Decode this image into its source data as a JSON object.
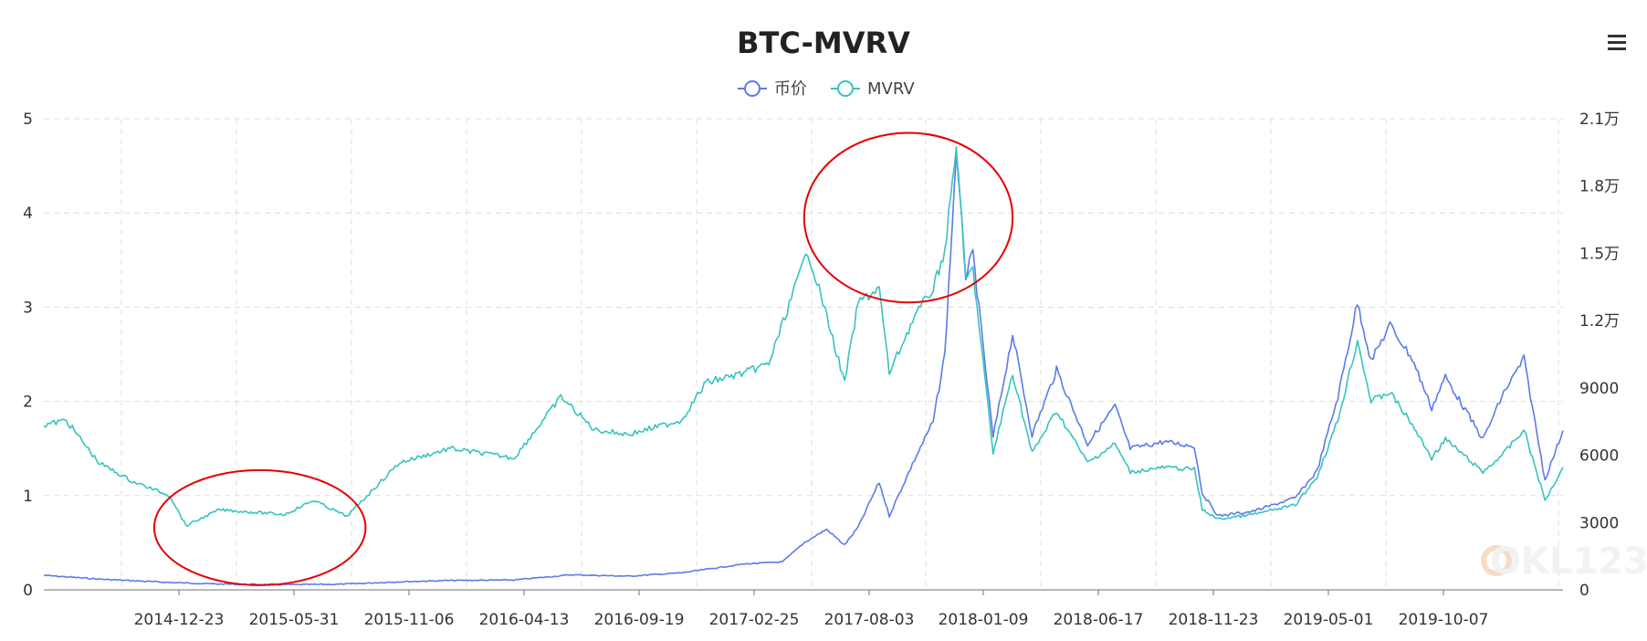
{
  "chart_data": {
    "type": "line",
    "title": "BTC-MVRV",
    "legend": {
      "position": "top-center",
      "entries": [
        "币价",
        "MVRV"
      ]
    },
    "x_tick_labels": [
      "2014-12-23",
      "2015-05-31",
      "2015-11-06",
      "2016-04-13",
      "2016-09-19",
      "2017-02-25",
      "2017-08-03",
      "2018-01-09",
      "2018-06-17",
      "2018-11-23",
      "2019-05-01",
      "2019-10-07"
    ],
    "y_left": {
      "min": 0,
      "max": 5,
      "ticks": [
        "0",
        "1",
        "2",
        "3",
        "4",
        "5"
      ]
    },
    "y_right": {
      "min": 0,
      "max": 21000,
      "ticks": [
        "0",
        "3000",
        "6000",
        "9000",
        "1.2万",
        "1.5万",
        "1.8万",
        "2.1万"
      ]
    },
    "grid": true,
    "series": [
      {
        "name": "币价",
        "color": "#5b7be9",
        "axis": "right",
        "points": [
          [
            "2014-07-01",
            650
          ],
          [
            "2014-09-15",
            480
          ],
          [
            "2014-12-23",
            330
          ],
          [
            "2015-03-01",
            260
          ],
          [
            "2015-05-31",
            230
          ],
          [
            "2015-08-15",
            250
          ],
          [
            "2015-11-06",
            360
          ],
          [
            "2016-01-15",
            420
          ],
          [
            "2016-04-13",
            440
          ],
          [
            "2016-07-01",
            670
          ],
          [
            "2016-09-19",
            610
          ],
          [
            "2016-12-01",
            760
          ],
          [
            "2017-02-25",
            1150
          ],
          [
            "2017-04-20",
            1250
          ],
          [
            "2017-05-20",
            2100
          ],
          [
            "2017-06-20",
            2700
          ],
          [
            "2017-07-15",
            2000
          ],
          [
            "2017-08-03",
            2800
          ],
          [
            "2017-09-01",
            4800
          ],
          [
            "2017-09-15",
            3300
          ],
          [
            "2017-10-20",
            5800
          ],
          [
            "2017-11-15",
            7500
          ],
          [
            "2017-12-01",
            10500
          ],
          [
            "2017-12-17",
            19500
          ],
          [
            "2017-12-30",
            14000
          ],
          [
            "2018-01-09",
            15000
          ],
          [
            "2018-02-06",
            6800
          ],
          [
            "2018-03-05",
            11400
          ],
          [
            "2018-04-01",
            6900
          ],
          [
            "2018-05-05",
            9800
          ],
          [
            "2018-06-17",
            6500
          ],
          [
            "2018-07-25",
            8200
          ],
          [
            "2018-08-15",
            6300
          ],
          [
            "2018-10-01",
            6600
          ],
          [
            "2018-11-12",
            6400
          ],
          [
            "2018-11-23",
            4300
          ],
          [
            "2018-12-15",
            3300
          ],
          [
            "2019-02-01",
            3500
          ],
          [
            "2019-04-01",
            4100
          ],
          [
            "2019-05-01",
            5300
          ],
          [
            "2019-05-30",
            8600
          ],
          [
            "2019-06-26",
            12800
          ],
          [
            "2019-07-15",
            10200
          ],
          [
            "2019-08-10",
            11800
          ],
          [
            "2019-09-10",
            10300
          ],
          [
            "2019-10-07",
            8100
          ],
          [
            "2019-10-26",
            9500
          ],
          [
            "2019-12-17",
            6700
          ],
          [
            "2020-01-15",
            8800
          ],
          [
            "2020-02-12",
            10300
          ],
          [
            "2020-03-12",
            4900
          ],
          [
            "2020-04-06",
            7100
          ]
        ]
      },
      {
        "name": "MVRV",
        "color": "#36c3bf",
        "axis": "left",
        "points": [
          [
            "2014-07-01",
            1.75
          ],
          [
            "2014-08-01",
            1.8
          ],
          [
            "2014-09-15",
            1.35
          ],
          [
            "2014-11-01",
            1.15
          ],
          [
            "2014-12-23",
            1.0
          ],
          [
            "2015-01-14",
            0.68
          ],
          [
            "2015-03-01",
            0.85
          ],
          [
            "2015-05-31",
            0.8
          ],
          [
            "2015-07-10",
            0.95
          ],
          [
            "2015-08-25",
            0.78
          ],
          [
            "2015-11-06",
            1.35
          ],
          [
            "2016-01-15",
            1.5
          ],
          [
            "2016-04-13",
            1.4
          ],
          [
            "2016-06-17",
            2.05
          ],
          [
            "2016-08-02",
            1.7
          ],
          [
            "2016-09-19",
            1.65
          ],
          [
            "2016-12-01",
            1.8
          ],
          [
            "2017-01-04",
            2.2
          ],
          [
            "2017-02-25",
            2.3
          ],
          [
            "2017-04-01",
            2.4
          ],
          [
            "2017-05-25",
            3.6
          ],
          [
            "2017-06-15",
            3.05
          ],
          [
            "2017-07-15",
            2.2
          ],
          [
            "2017-08-03",
            3.05
          ],
          [
            "2017-09-01",
            3.2
          ],
          [
            "2017-09-15",
            2.3
          ],
          [
            "2017-10-20",
            2.9
          ],
          [
            "2017-11-15",
            3.2
          ],
          [
            "2017-12-01",
            3.6
          ],
          [
            "2017-12-17",
            4.7
          ],
          [
            "2017-12-30",
            3.3
          ],
          [
            "2018-01-09",
            3.4
          ],
          [
            "2018-02-06",
            1.45
          ],
          [
            "2018-03-05",
            2.3
          ],
          [
            "2018-04-01",
            1.45
          ],
          [
            "2018-05-05",
            1.9
          ],
          [
            "2018-06-17",
            1.35
          ],
          [
            "2018-07-25",
            1.55
          ],
          [
            "2018-08-15",
            1.25
          ],
          [
            "2018-10-01",
            1.3
          ],
          [
            "2018-11-12",
            1.28
          ],
          [
            "2018-11-23",
            0.85
          ],
          [
            "2018-12-15",
            0.75
          ],
          [
            "2019-02-01",
            0.8
          ],
          [
            "2019-04-01",
            0.9
          ],
          [
            "2019-05-01",
            1.2
          ],
          [
            "2019-05-30",
            1.8
          ],
          [
            "2019-06-26",
            2.65
          ],
          [
            "2019-07-15",
            2.0
          ],
          [
            "2019-08-10",
            2.1
          ],
          [
            "2019-09-10",
            1.75
          ],
          [
            "2019-10-07",
            1.4
          ],
          [
            "2019-10-26",
            1.6
          ],
          [
            "2019-12-17",
            1.25
          ],
          [
            "2020-01-15",
            1.45
          ],
          [
            "2020-02-12",
            1.7
          ],
          [
            "2020-03-12",
            0.95
          ],
          [
            "2020-04-06",
            1.3
          ]
        ]
      }
    ],
    "annotations": [
      {
        "shape": "ellipse",
        "color": "#e60000",
        "x_range": [
          "2014-12-01",
          "2015-09-20"
        ],
        "y_range_left": [
          0.05,
          1.27
        ]
      },
      {
        "shape": "ellipse",
        "color": "#e60000",
        "x_range": [
          "2017-05-20",
          "2018-03-05"
        ],
        "y_range_left": [
          3.05,
          4.85
        ]
      }
    ]
  },
  "toolbar": {
    "menu_icon": "hamburger-menu-icon"
  },
  "watermark": {
    "text": "OKL123",
    "icon": "okl-logo-icon"
  }
}
